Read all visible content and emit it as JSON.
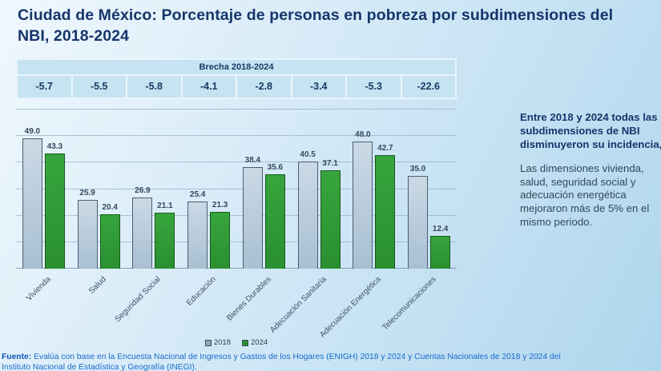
{
  "title": "Ciudad de México: Porcentaje de personas en pobreza por subdimensiones del NBI, 2018-2024",
  "brecha": {
    "header": "Brecha 2018-2024",
    "values": [
      "-5.7",
      "-5.5",
      "-5.8",
      "-4.1",
      "-2.8",
      "-3.4",
      "-5.3",
      "-22.6"
    ]
  },
  "chart_data": {
    "type": "bar",
    "categories": [
      "Vivienda",
      "Salud",
      "Seguridad Social",
      "Educación",
      "Bienes Durables",
      "Adecuación Sanitaria",
      "Adecuación Energética",
      "Telecomunicaciones"
    ],
    "series": [
      {
        "name": "2018",
        "color": "#a8c0d2",
        "values": [
          49.0,
          25.9,
          26.9,
          25.4,
          38.4,
          40.5,
          48.0,
          35.0
        ]
      },
      {
        "name": "2024",
        "color": "#2a8f30",
        "values": [
          43.3,
          20.4,
          21.1,
          21.3,
          35.6,
          37.1,
          42.7,
          12.4
        ]
      }
    ],
    "title": "Ciudad de México: Porcentaje de personas en pobreza por subdimensiones del NBI, 2018-2024",
    "xlabel": "",
    "ylabel": "",
    "ylim": [
      0,
      60
    ],
    "grid": true,
    "gridline_step": 10,
    "legend_position": "bottom",
    "value_labels": true
  },
  "legend": {
    "items": [
      {
        "label": "2018",
        "color": "#8fa9c0"
      },
      {
        "label": "2024",
        "color": "#2a8f30"
      }
    ]
  },
  "annotation": {
    "lead": "Entre 2018 y 2024 todas las subdimensiones de NBI disminuyeron su incidencia,",
    "body": "Las dimensiones vivienda, salud, seguridad social y adecuación energética mejoraron más de 5% en el mismo periodo."
  },
  "footer": {
    "label": "Fuente:",
    "line1": "Evalúa con base en la Encuesta Nacional de Ingresos y Gastos de los Hogares (ENIGH) 2018 y 2024 y Cuentas Nacionales de 2018 y 2024 del",
    "line2": "Instituto Nacional de Estadística y Geografía (INEGI)."
  },
  "colors": {
    "background_top": "#f0f8fd",
    "background_bottom": "#aed6ed",
    "title_text": "#16356b",
    "table_cell": "#c6e3f2",
    "bar_2018": "#a8c0d2",
    "bar_2018_border": "#4b5f72",
    "bar_2024": "#2a8f30",
    "bar_2024_border": "#175a1d",
    "footer_text": "#1a6bcb"
  }
}
